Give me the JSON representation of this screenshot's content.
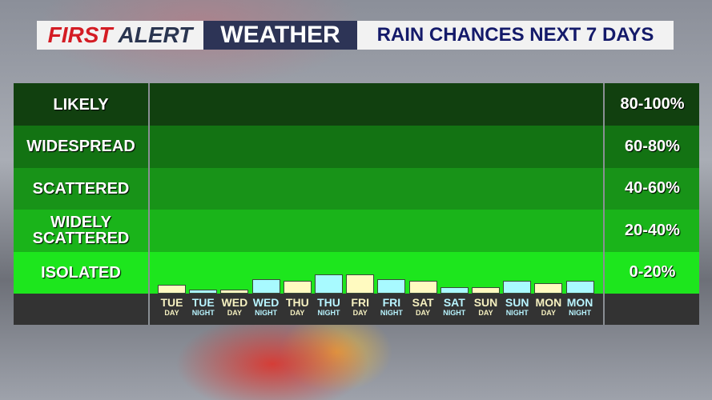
{
  "banner": {
    "first": "FIRST",
    "alert": "ALERT",
    "weather": "WEATHER",
    "title": "RAIN CHANCES NEXT 7 DAYS"
  },
  "colors": {
    "day_bar": "#fffac0",
    "night_bar": "#a8faff",
    "day_label": "#f5f0c0",
    "night_label": "#b8f4ff"
  },
  "categories": [
    {
      "label": "LIKELY",
      "range": "80-100%",
      "color": "#11400f"
    },
    {
      "label": "WIDESPREAD",
      "range": "60-80%",
      "color": "#137313"
    },
    {
      "label": "SCATTERED",
      "range": "40-60%",
      "color": "#189318"
    },
    {
      "label": "WIDELY SCATTERED",
      "range": "20-40%",
      "color": "#1ab41a"
    },
    {
      "label": "ISOLATED",
      "range": "0-20%",
      "color": "#1de61d"
    }
  ],
  "chart_data": {
    "type": "bar",
    "ylim": [
      0,
      100
    ],
    "categories": [
      {
        "day": "TUE",
        "period": "DAY",
        "value": 4
      },
      {
        "day": "TUE",
        "period": "NIGHT",
        "value": 2
      },
      {
        "day": "WED",
        "period": "DAY",
        "value": 2
      },
      {
        "day": "WED",
        "period": "NIGHT",
        "value": 7
      },
      {
        "day": "THU",
        "period": "DAY",
        "value": 6
      },
      {
        "day": "THU",
        "period": "NIGHT",
        "value": 9
      },
      {
        "day": "FRI",
        "period": "DAY",
        "value": 9
      },
      {
        "day": "FRI",
        "period": "NIGHT",
        "value": 7
      },
      {
        "day": "SAT",
        "period": "DAY",
        "value": 6
      },
      {
        "day": "SAT",
        "period": "NIGHT",
        "value": 3
      },
      {
        "day": "SUN",
        "period": "DAY",
        "value": 3
      },
      {
        "day": "SUN",
        "period": "NIGHT",
        "value": 6
      },
      {
        "day": "MON",
        "period": "DAY",
        "value": 5
      },
      {
        "day": "MON",
        "period": "NIGHT",
        "value": 6
      }
    ]
  }
}
